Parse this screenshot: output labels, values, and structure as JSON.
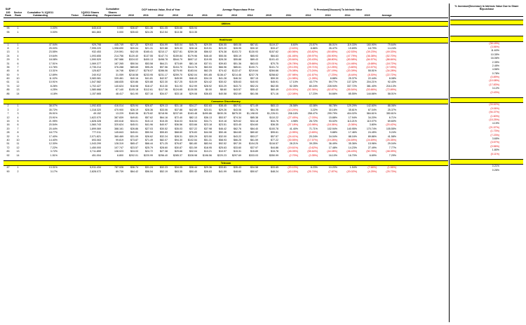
{
  "headers": {
    "sp100_rank": "S&P 100 Rank",
    "sector_rank": "Sector Rank",
    "cum_pct": "Cumulative % 1Q2011 Outstanding",
    "ticker": "Ticker",
    "shares_out": "1Q2011 Shares Outstanding",
    "cum_rep": "Cumulative Shares Repurchased",
    "dcf_group": "DCF Intrinsic Value, End of Year",
    "avg_group": "Average Repurchase Price",
    "prem_group": "% Premium/(Discount) To Intrinsic Value",
    "years": [
      "2010",
      "2011",
      "2012",
      "2013",
      "2014"
    ],
    "avg_years": [
      "2011",
      "2012",
      "2013",
      "2014",
      "2015"
    ],
    "prem_years": [
      "2011",
      "2012",
      "2013",
      "2014",
      "2015"
    ],
    "average": "Average",
    "side": "% Increase/(Decrease) In Intrinsic Value Due to Share Repurchase"
  },
  "sections": [
    {
      "name": "Utilities",
      "rows": [
        [
          "95",
          "1",
          "0.00%",
          "",
          "845,615",
          "0.000",
          "$36.87",
          "$31.36",
          "$31.05",
          "$35.66",
          "$35.94",
          "",
          "",
          "",
          "",
          "",
          "",
          "",
          "",
          "",
          "",
          "",
          ""
        ],
        [
          "95",
          "1",
          "0.00%",
          "",
          "661,863",
          "0.000",
          "$35.63",
          "$24.26",
          "$12.54",
          "$13.38",
          "$13.35",
          "",
          "",
          "",
          "",
          "",
          "",
          "",
          "",
          "",
          "",
          "",
          ""
        ]
      ]
    },
    {
      "name": "Healthcare",
      "rows": [
        [
          "1",
          "1",
          "47.94%",
          "",
          "929,798",
          "445.749",
          "$27.25",
          "$29.63",
          "$34.99",
          "$40.04",
          "$45.75",
          "$29.59",
          "$36.55",
          "$65.08",
          "$87.81",
          "$119.37",
          "8.60%",
          "23.57%",
          "86.01%",
          "119.33%",
          "160.90%",
          "79.64%",
          "(38.18%)"
        ],
        [
          "8",
          "2",
          "25.00%",
          "",
          "7,995.220",
          "1,998.690",
          "$20.04",
          "$21.31",
          "$22.88",
          "$25.33",
          "$28.18",
          "$19.51",
          "$23.20",
          "$28.95",
          "$30.32",
          "$33.47",
          "(2.63%)",
          "8.86%",
          "26.47%",
          "19.69%",
          "18.79%",
          "14.24%",
          "(3.56%)"
        ],
        [
          "13",
          "3",
          "23.55%",
          "",
          "932.453",
          "219.591",
          "$42.05",
          "$165.41",
          "$210.17",
          "$227.81",
          "$259.38",
          "$56.02",
          "$76.38",
          "$103.72",
          "$130.93",
          "$157.62",
          "(60.56%)",
          "(53.82%)",
          "(50.65%)",
          "(42.53%)",
          "(39.23%)",
          "(49.33%)",
          "11.63%"
        ],
        [
          "24",
          "4",
          "19.64%",
          "",
          "1,093.655",
          "214.756",
          "$120.40",
          "$137.55",
          "$147.74",
          "$159.84",
          "$179.96",
          "$46.40",
          "$55.06",
          "$55.19",
          "$65.93",
          "$84.63",
          "(61.46%)",
          "(59.97%)",
          "(55.90%)",
          "(47.79%)",
          "(36.38%)",
          "(52.70%)",
          "10.35%"
        ],
        [
          "29",
          "5",
          "18.08%",
          "",
          "1,590.529",
          "287.586",
          "$324.02",
          "$400.13",
          "$498.78",
          "$544.79",
          "$657.12",
          "$19.95",
          "$28.28",
          "$55.88",
          "$89.43",
          "$101.43",
          "(93.84%)",
          "(93.43%)",
          "(88.80%)",
          "(83.58%)",
          "(84.57%)",
          "(88.84%)",
          "16.06%"
        ],
        [
          "31",
          "6",
          "17.51%",
          "",
          "1,069.377",
          "187.265",
          "$50.54",
          "$53.58",
          "$64.21",
          "$73.69",
          "$81.16",
          "$37.01",
          "$39.83",
          "$51.36",
          "$63.03",
          "$70.75",
          "(26.78%)",
          "(25.66%)",
          "(20.01%)",
          "(14.46%)",
          "(6.68%)",
          "(18.72%)",
          "2.35%"
        ],
        [
          "35",
          "7",
          "13.76%",
          "",
          "2,735.214",
          "376.288",
          "$89.65",
          "$95.26",
          "$97.56",
          "$104.70",
          "$113.76",
          "$63.53",
          "$66.96",
          "$85.61",
          "$100.71",
          "$101.74",
          "(29.13%)",
          "(29.71%)",
          "(12.25%)",
          "(3.80%)",
          "(10.57%)",
          "(17.09%)",
          "2.45%"
        ],
        [
          "45",
          "8",
          "13.31%",
          "",
          "125.827",
          "16.746",
          "$260.17",
          "$278.07",
          "$286.06",
          "$275.90",
          "$183.04",
          "$62.25",
          "$74.42",
          "$122.47",
          "$219.64",
          "$284.66",
          "(76.08%)",
          "(73.24%)",
          "(57.19%)",
          "(20.39%)",
          "55.51%",
          "(34.28%)",
          "4.56%"
        ],
        [
          "50",
          "9",
          "12.89%",
          "",
          "240.912",
          "31.059",
          "$218.58",
          "$233.95",
          "$231.17",
          "$259.70",
          "$282.04",
          "$91.85",
          "$136.47",
          "$214.46",
          "$237.78",
          "$258.62",
          "(57.98%)",
          "(41.67%)",
          "(7.23%)",
          "(8.44%)",
          "(8.30%)",
          "(22.72%)",
          "0.78%"
        ],
        [
          "60",
          "10",
          "11.02%",
          "",
          "3,083.081",
          "339.461",
          "$40.16",
          "$41.81",
          "$42.57",
          "$45.59",
          "$48.43",
          "$34.15",
          "$41.28",
          "$46.34",
          "$57.15",
          "$59.30",
          "(14.98%)",
          "(1.28%)",
          "8.88%",
          "25.37%",
          "22.44%",
          "8.08%",
          "(0.89%)"
        ],
        [
          "61",
          "11",
          "10.91%",
          "",
          "1,547.582",
          "168.835",
          "$20.86",
          "$20.88",
          "$22.30",
          "$17.25",
          "$15.09",
          "$24.42",
          "$30.02",
          "$35.63",
          "$40.93",
          "$45.91",
          "17.10%",
          "43.77%",
          "59.77%",
          "137.32%",
          "204.21%",
          "92.43%",
          "(10.08%)"
        ],
        [
          "74",
          "12",
          "8.26%",
          "",
          "1,702.427",
          "140.624",
          "$18.98",
          "$18.47",
          "$13.30",
          "$11.93",
          "$12.99",
          "$28.92",
          "$33.29",
          "$43.73",
          "$52.24",
          "$62.55",
          "52.35%",
          "80.24%",
          "228.94%",
          "337.72%",
          "381.40%",
          "216.13%",
          "(17.83%)"
        ],
        [
          "85",
          "13",
          "4.25%",
          "",
          "1,580.668",
          "67.140",
          "$105.18",
          "$112.61",
          "$117.36",
          "$124.65",
          "$130.55",
          "$0.00",
          "$8.60",
          "$43.57",
          "$55.42",
          "$60.49",
          "(100.00%)",
          "(92.36%)",
          "(62.87%)",
          "(55.54%)",
          "(53.66%)",
          "(72.89%)",
          "3.12%"
        ],
        [
          "86",
          "14",
          "4.18%",
          "",
          "1,157.665",
          "48.417",
          "$41.90",
          "$37.16",
          "$34.07",
          "$33.18",
          "$29.08",
          "$36.83",
          "$40.58",
          "$52.69",
          "$61.56",
          "$71.16",
          "(12.08%)",
          "17.23%",
          "54.66%",
          "85.55%",
          "144.66%",
          "58.01%",
          "(2.43%)"
        ]
      ]
    },
    {
      "name": "Consumer Discretionary",
      "rows": [
        [
          "2",
          "1",
          "38.07%",
          "",
          "1,092.833",
          "416.014",
          "$25.94",
          "$26.87",
          "$29.13",
          "$31.18",
          "$34.27",
          "$32.83",
          "$38.45",
          "$57.91",
          "$71.49",
          "$83.13",
          "26.58%",
          "43.08%",
          "98.78%",
          "129.29%",
          "142.60%",
          "88.06%",
          "(33.52%)"
        ],
        [
          "3",
          "2",
          "35.72%",
          "",
          "1,318.320",
          "470.900",
          "$26.19",
          "$28.36",
          "$33.06",
          "$37.88",
          "$42.89",
          "$23.51",
          "$29.26",
          "$43.06",
          "$51.76",
          "$64.05",
          "(10.24%)",
          "3.22%",
          "30.16%",
          "35.61%",
          "67.04%",
          "25.37%",
          "(9.06%)"
        ],
        [
          "7",
          "3",
          "26.91%",
          "",
          "49.152",
          "13.229",
          "$160.36",
          "$175.82",
          "$218.96",
          "$237.69",
          "$163.48",
          "$490.86",
          "$630.26",
          "$875.39",
          "$1,198.00",
          "$1,226.01",
          "206.16%",
          "258.47%",
          "299.79%",
          "404.02%",
          "584.61%",
          "350.61%",
          "(94.37%)"
        ],
        [
          "12",
          "4",
          "23.91%",
          "",
          "1,622.070",
          "387.839",
          "$49.81",
          "$57.62",
          "$64.16",
          "$72.40",
          "$82.13",
          "$36.13",
          "$53.57",
          "$74.34",
          "$85.38",
          "$110.22",
          "(27.45%)",
          "(7.03%)",
          "15.88%",
          "17.94%",
          "34.20%",
          "6.71%",
          "(1.60%)"
        ],
        [
          "15",
          "5",
          "21.95%",
          "",
          "1,828.328",
          "400.618",
          "$34.01",
          "$15.13",
          "$15.35",
          "$16.03",
          "$16.54",
          "$34.71",
          "$19.18",
          "$29.62",
          "$34.18",
          "$34.76",
          "4.98%",
          "26.72%",
          "93.02%",
          "113.21%",
          "110.07%",
          "69.60%",
          "(15.25%)"
        ],
        [
          "16",
          "6",
          "20.54%",
          "",
          "1,560.743",
          "320.624",
          "$45.01",
          "$41.96",
          "$40.97",
          "$36.56",
          "$33.66",
          "$23.18",
          "$23.51",
          "$33.45",
          "$34.60",
          "$36.35",
          "(37.18%)",
          "(43.98%)",
          "(18.36%)",
          "(5.36%)",
          "3.80%",
          "(20.42%)",
          "4.19%"
        ],
        [
          "20",
          "7",
          "20.44%",
          "",
          "1,899.069",
          "388.161",
          "$26.86",
          "$27.03",
          "$30.52",
          "$35.03",
          "$37.22",
          "$37.98",
          "$46.42",
          "$62.76",
          "$84.40",
          "$100.78",
          "41.40%",
          "71.71%",
          "102.94%",
          "140.95%",
          "170.74%",
          "105.55%",
          "(21.57%)"
        ],
        [
          "28",
          "8",
          "18.77%",
          "",
          "777.011",
          "145.843",
          "$45.61",
          "$50.94",
          "$55.83",
          "$68.60",
          "$76.83",
          "$44.08",
          "$50.46",
          "$64.65",
          "$80.82",
          "$95.61",
          "(4.95%)",
          "(0.65%)",
          "9.88%",
          "17.46%",
          "24.45%",
          "9.24%",
          "(1.73%)"
        ],
        [
          "32",
          "9",
          "17.40%",
          "",
          "2,071.821",
          "360.469",
          "$31.09",
          "$26.62",
          "$32.24",
          "$28.31",
          "$30.29",
          "$23.50",
          "$32.00",
          "$43.22",
          "$53.27",
          "$57.57",
          "(24.41%)",
          "20.24%",
          "34.04%",
          "88.16%",
          "89.86%",
          "41.58%",
          "(7.23%)"
        ],
        [
          "40",
          "10",
          "14.40%",
          "",
          "693.063",
          "99.819",
          "$73.87",
          "$71.49",
          "$82.07",
          "$94.30",
          "$102.54",
          "$51.31",
          "$58.93",
          "$66.25",
          "$61.59",
          "$77.22",
          "(30.55%)",
          "(17.57%)",
          "(19.28%)",
          "(34.69%)",
          "(24.69%)",
          "(25.35%)",
          "3.65%"
        ],
        [
          "51",
          "11",
          "12.30%",
          "",
          "1,043.299",
          "128.319",
          "$65.47",
          "$66.44",
          "$71.25",
          "$76.87",
          "$81.80",
          "$83.94",
          "$92.52",
          "$97.39",
          "$104.25",
          "$116.57",
          "28.21%",
          "39.25%",
          "36.49%",
          "35.36%",
          "15.96%",
          "29.04%",
          "(3.57%)"
        ],
        [
          "72",
          "12",
          "7.22%",
          "",
          "1,450.000",
          "107.747",
          "$23.57",
          "$25.79",
          "$28.60",
          "$30.87",
          "$31.59",
          "$18.95",
          "$25.63",
          "$33.60",
          "$37.97",
          "$44.86",
          "(19.61%)",
          "(0.62%)",
          "17.48%",
          "14.23%",
          "27.49%",
          "7.77%",
          "(0.56%)"
        ],
        [
          "83",
          "13",
          "3.72%",
          "",
          "3,711.859",
          "138.023",
          "$24.03",
          "$24.72",
          "$27.38",
          "$29.66",
          "$32.04",
          "$13.21",
          "$10.97",
          "$15.31",
          "$15.89",
          "$15.78",
          "(45.05%)",
          "(55.64%)",
          "(44.08%)",
          "(46.43%)",
          "(50.76%)",
          "(48.39%)",
          "1.80%"
        ],
        [
          "92",
          "14",
          "1.51%",
          "",
          "451.004",
          "6.800",
          "$202.01",
          "$220.99",
          "$256.40",
          "$285.37",
          "$328.98",
          "$196.56",
          "$220.23",
          "$297.69",
          "$333.03",
          "$350.99",
          "(2.70%)",
          "(0.35%)",
          "16.10%",
          "16.70%",
          "6.69%",
          "7.29%",
          "(0.11%)"
        ]
      ]
    },
    {
      "name": "Telecom",
      "rows": [
        [
          "47",
          "1",
          "13.31%",
          "",
          "5,911.434",
          "787.026",
          "$36.74",
          "$31.24",
          "$32.23",
          "$34.05",
          "$36.44",
          "$29.36",
          "$33.81",
          "$35.43",
          "$34.58",
          "$33.65",
          "(20.10%)",
          "8.23%",
          "10.20%",
          "1.54%",
          "(7.66%)",
          "(1.56%)",
          "0.21%"
        ],
        [
          "90",
          "2",
          "3.17%",
          "",
          "2,828.072",
          "89.739",
          "$64.42",
          "$56.54",
          "$52.19",
          "$63.35",
          "$50.40",
          "$36.63",
          "$41.99",
          "$48.60",
          "$50.67",
          "$48.24",
          "(43.15%)",
          "(25.74%)",
          "(7.87%)",
          "(20.02%)",
          "(4.25%)",
          "(25.73%)",
          "0.26%"
        ]
      ]
    }
  ]
}
